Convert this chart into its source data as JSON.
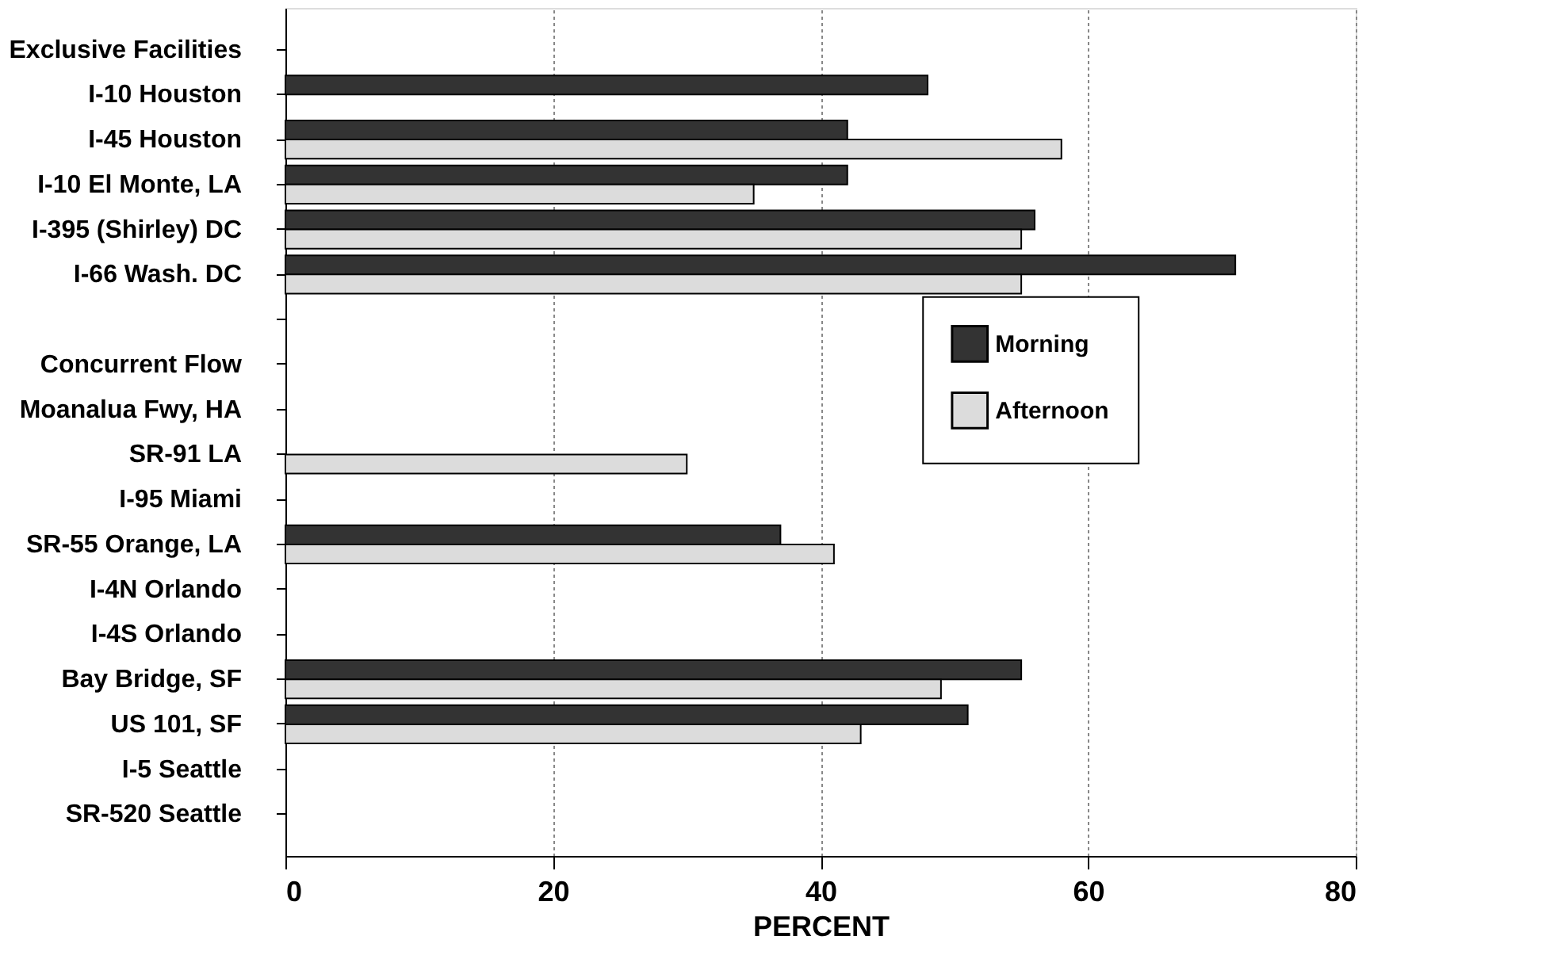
{
  "chart_data": {
    "type": "bar",
    "orientation": "horizontal",
    "xlabel": "PERCENT",
    "categories": [
      "Exclusive Facilities",
      "I-10 Houston",
      "I-45 Houston",
      "I-10 El Monte, LA",
      "I-395 (Shirley) DC",
      "I-66 Wash. DC",
      null,
      "Concurrent Flow",
      "Moanalua Fwy, HA",
      "SR-91 LA",
      "I-95 Miami",
      "SR-55 Orange, LA",
      "I-4N Orlando",
      "I-4S Orlando",
      "Bay Bridge, SF",
      "US 101, SF",
      "I-5 Seattle",
      "SR-520 Seattle"
    ],
    "series": [
      {
        "name": "Morning",
        "color": "#333333",
        "values": [
          null,
          48,
          42,
          42,
          56,
          71,
          null,
          null,
          null,
          null,
          null,
          37,
          null,
          null,
          55,
          51,
          null,
          null
        ]
      },
      {
        "name": "Afternoon",
        "color": "#dcdcdc",
        "values": [
          null,
          null,
          58,
          35,
          55,
          55,
          null,
          null,
          null,
          30,
          null,
          41,
          null,
          null,
          49,
          43,
          null,
          null
        ]
      }
    ],
    "xlim": [
      0,
      80
    ],
    "xticks": [
      0,
      20,
      40,
      60,
      80
    ],
    "grid": "x",
    "legend": "right"
  }
}
